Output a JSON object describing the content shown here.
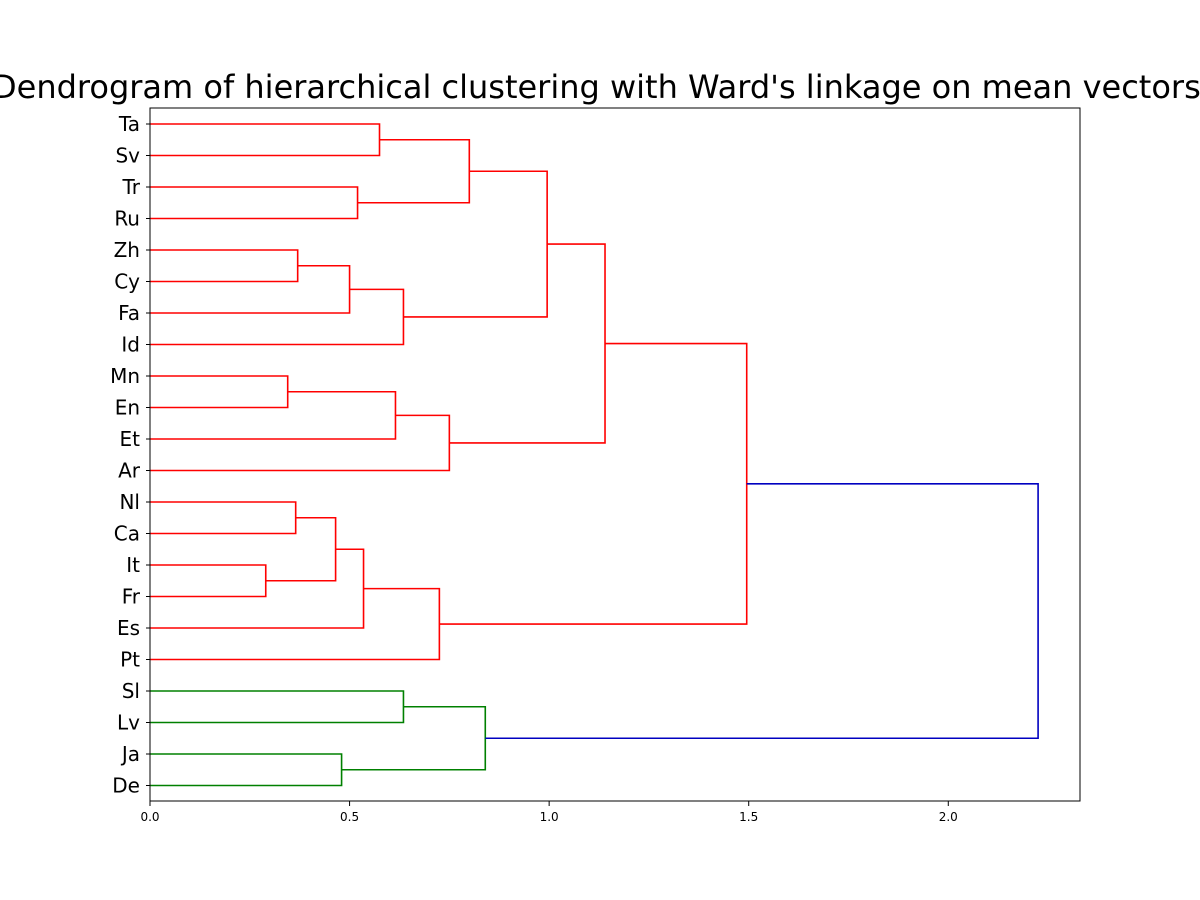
{
  "chart_data": {
    "type": "dendrogram",
    "title": "Dendrogram of hierarchical clustering with Ward's linkage on mean vectors",
    "orientation": "right",
    "leaves": [
      "Ta",
      "Sv",
      "Tr",
      "Ru",
      "Zh",
      "Cy",
      "Fa",
      "Id",
      "Mn",
      "En",
      "Et",
      "Ar",
      "Nl",
      "Ca",
      "It",
      "Fr",
      "Es",
      "Pt",
      "Sl",
      "Lv",
      "Ja",
      "De"
    ],
    "x_ticks": [
      "0.0",
      "0.5",
      "1.0",
      "1.5",
      "2.0"
    ],
    "x_tick_values": [
      0,
      0.5,
      1.0,
      1.5,
      2.0
    ],
    "xlim": [
      0,
      2.33
    ],
    "colors": {
      "cluster_a": "#ff0000",
      "cluster_b": "#008000",
      "root": "#0000c0",
      "axis": "#000000"
    },
    "merges": [
      {
        "a": "Ta",
        "b": "Sv",
        "height": 0.575,
        "color": "cluster_a"
      },
      {
        "a": "Tr",
        "b": "Ru",
        "height": 0.52,
        "color": "cluster_a"
      },
      {
        "a": "Ta+Sv",
        "b": "Tr+Ru",
        "height": 0.8,
        "color": "cluster_a"
      },
      {
        "a": "Zh",
        "b": "Cy",
        "height": 0.37,
        "color": "cluster_a"
      },
      {
        "a": "Zh+Cy",
        "b": "Fa",
        "height": 0.5,
        "color": "cluster_a"
      },
      {
        "a": "Zh+Cy+Fa",
        "b": "Id",
        "height": 0.635,
        "color": "cluster_a"
      },
      {
        "a": "Ta..Ru",
        "b": "Zh..Id",
        "height": 0.995,
        "color": "cluster_a"
      },
      {
        "a": "Mn",
        "b": "En",
        "height": 0.345,
        "color": "cluster_a"
      },
      {
        "a": "Mn+En",
        "b": "Et",
        "height": 0.615,
        "color": "cluster_a"
      },
      {
        "a": "Mn+En+Et",
        "b": "Ar",
        "height": 0.75,
        "color": "cluster_a"
      },
      {
        "a": "Ta..Id",
        "b": "Mn..Ar",
        "height": 1.14,
        "color": "cluster_a"
      },
      {
        "a": "Nl",
        "b": "Ca",
        "height": 0.365,
        "color": "cluster_a"
      },
      {
        "a": "It",
        "b": "Fr",
        "height": 0.29,
        "color": "cluster_a"
      },
      {
        "a": "Nl+Ca",
        "b": "It+Fr",
        "height": 0.465,
        "color": "cluster_a"
      },
      {
        "a": "Nl..Fr",
        "b": "Es",
        "height": 0.535,
        "color": "cluster_a"
      },
      {
        "a": "Nl..Es",
        "b": "Pt",
        "height": 0.725,
        "color": "cluster_a"
      },
      {
        "a": "Ta..Ar",
        "b": "Nl..Pt",
        "height": 1.495,
        "color": "cluster_a"
      },
      {
        "a": "Sl",
        "b": "Lv",
        "height": 0.635,
        "color": "cluster_b"
      },
      {
        "a": "Ja",
        "b": "De",
        "height": 0.48,
        "color": "cluster_b"
      },
      {
        "a": "Sl+Lv",
        "b": "Ja+De",
        "height": 0.84,
        "color": "cluster_b"
      },
      {
        "a": "Ta..Pt",
        "b": "Sl..De",
        "height": 2.225,
        "color": "root"
      }
    ]
  }
}
